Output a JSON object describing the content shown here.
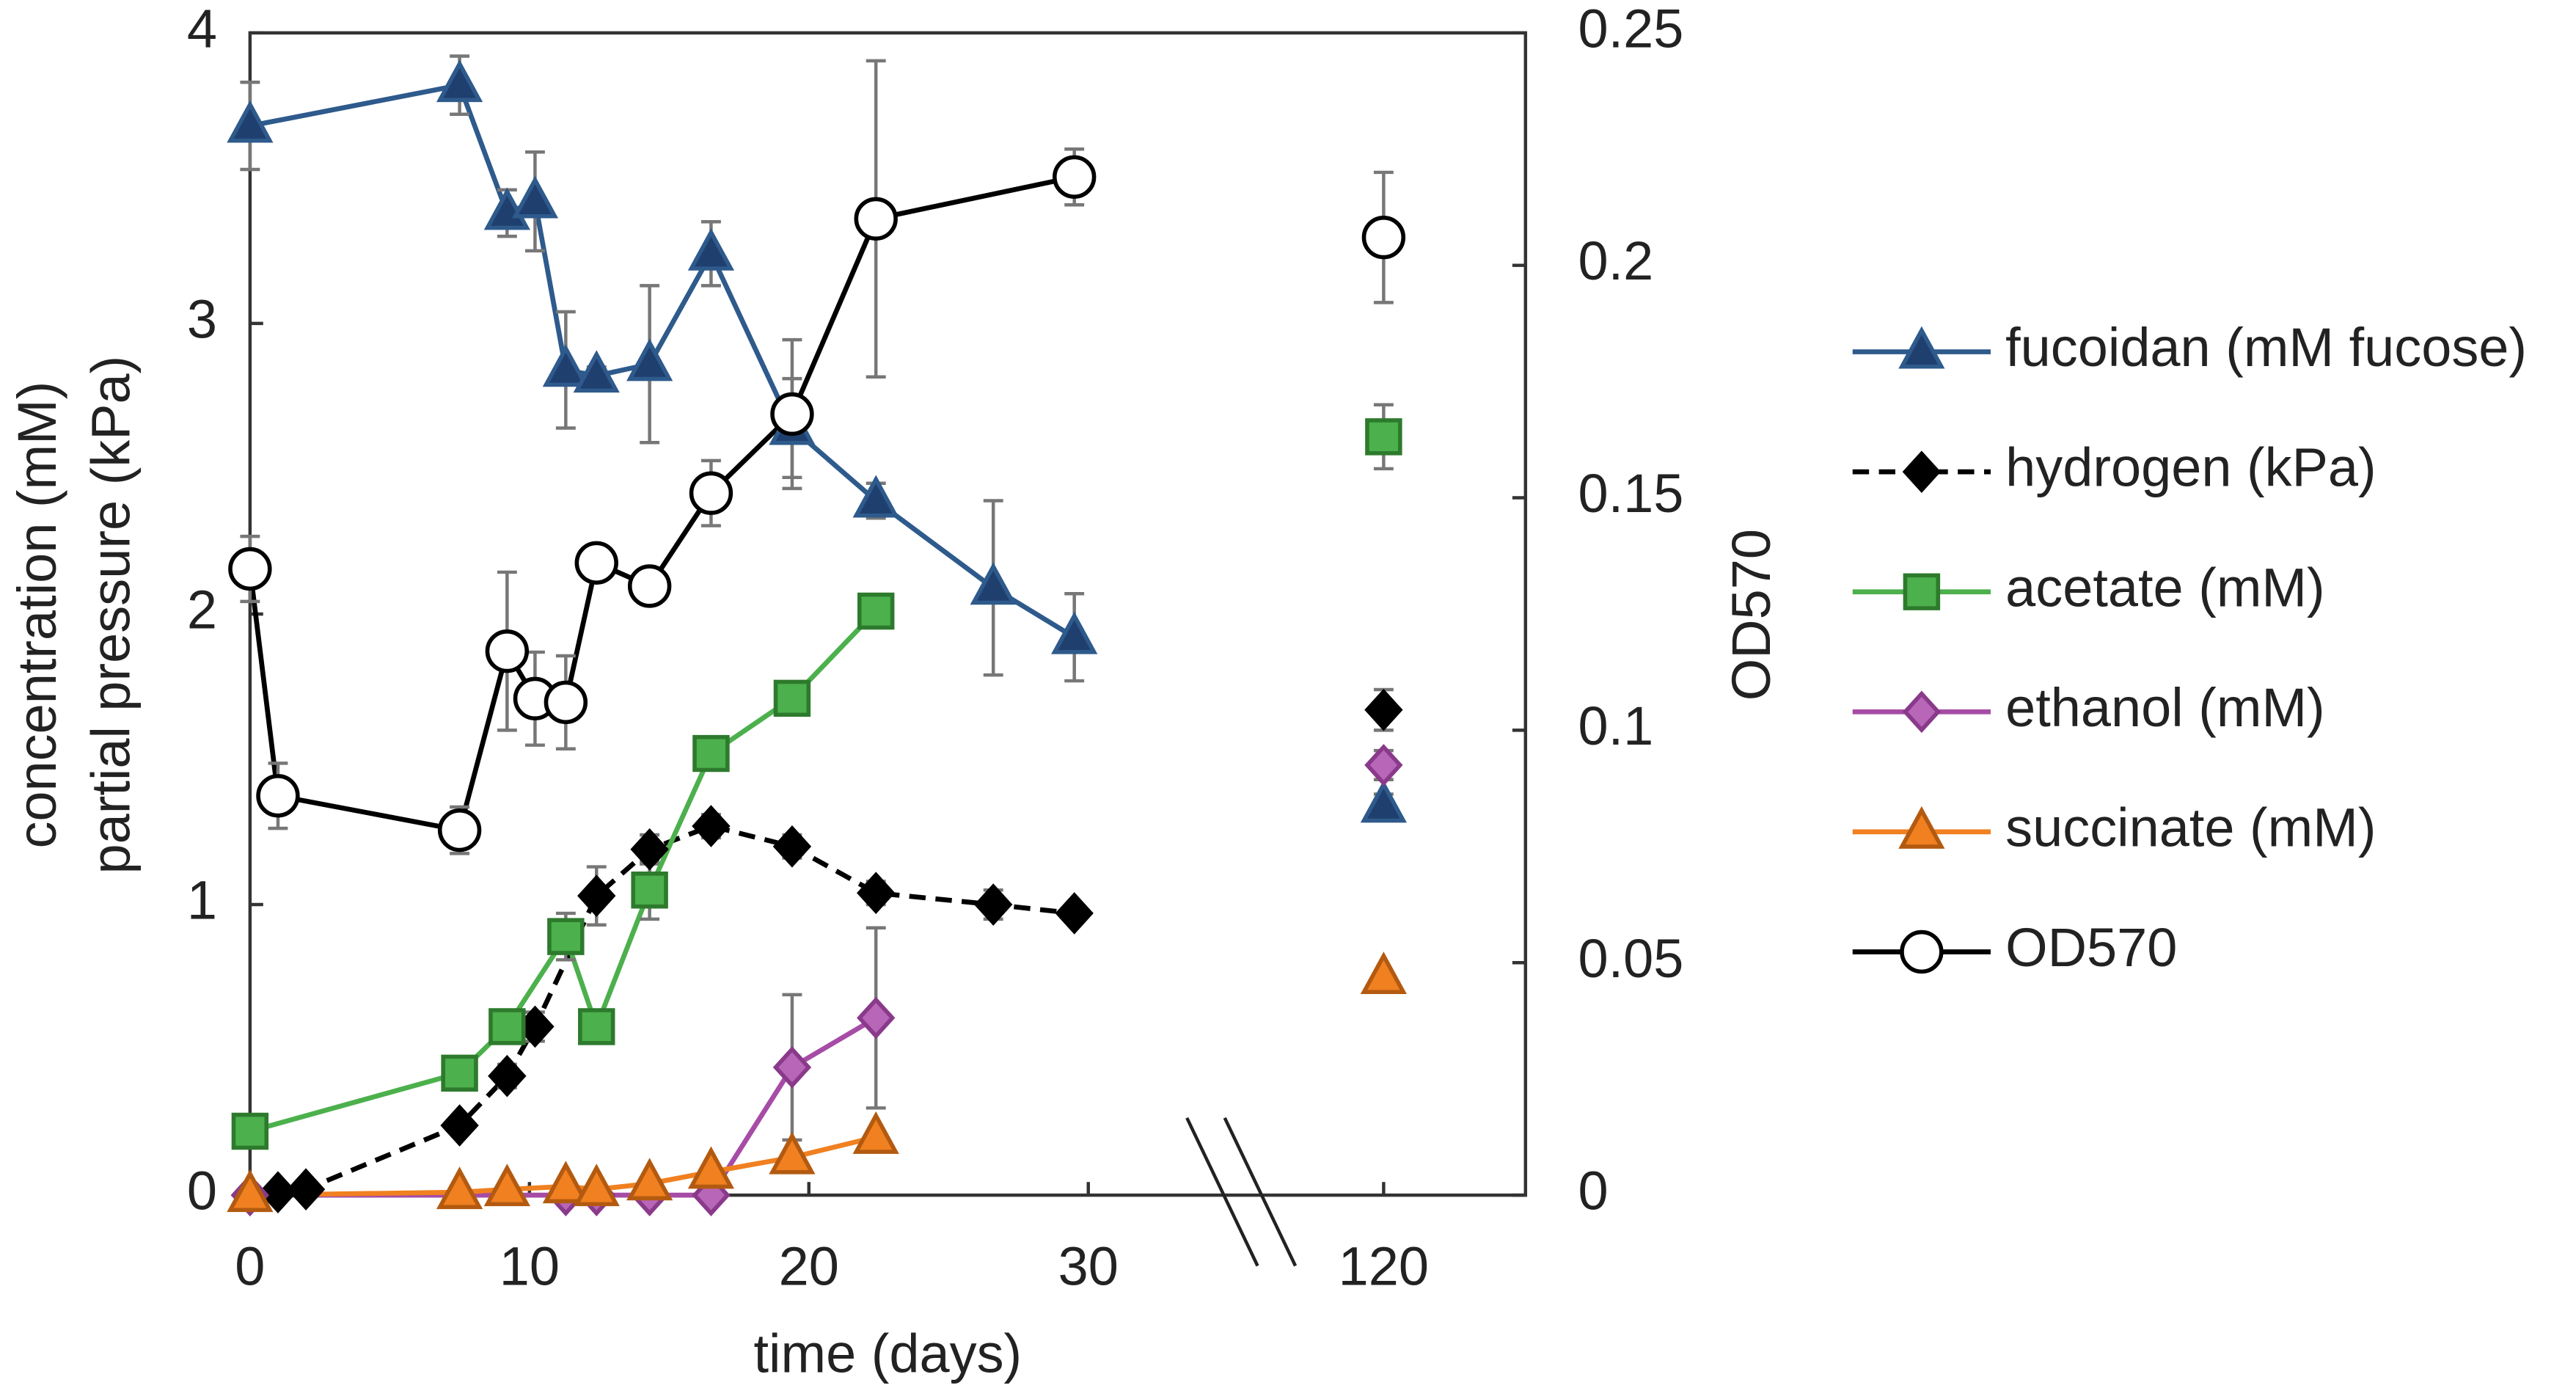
{
  "chart_data": {
    "type": "line",
    "x_label": "time (days)",
    "y_label": [
      "concentration (mM)",
      "partial pressure (kPa)"
    ],
    "y2_label": "OD570",
    "xlim": [
      [
        0,
        36
      ],
      [
        115.5,
        125
      ]
    ],
    "xticks": [
      0,
      10,
      20,
      30,
      120
    ],
    "ylim": [
      0,
      4
    ],
    "yticks": [
      0,
      1,
      2,
      3,
      4
    ],
    "y2lim": [
      0,
      0.25
    ],
    "y2ticks": [
      0,
      0.05,
      0.1,
      0.15,
      0.2,
      0.25
    ],
    "legend": "right",
    "series": [
      {
        "name": "fucoidan (mM fucose)",
        "color": "#2e5a8c",
        "marker": "triangle",
        "marker_fill": "#1f3f6e",
        "dash": false,
        "axis": "y",
        "x": [
          0,
          7.5,
          9.2,
          10.2,
          11.3,
          12.4,
          14.3,
          16.5,
          19.4,
          22.4,
          26.6,
          29.5,
          120
        ],
        "values": [
          3.68,
          3.82,
          3.38,
          3.42,
          2.84,
          2.82,
          2.86,
          3.24,
          2.64,
          2.39,
          2.09,
          1.92,
          1.34
        ],
        "errors": [
          0.15,
          0.1,
          0.08,
          0.17,
          0.2,
          0.03,
          0.27,
          0.11,
          0.17,
          0.06,
          0.3,
          0.15,
          0.04
        ]
      },
      {
        "name": "hydrogen (kPa)",
        "color": "#000000",
        "marker": "diamond",
        "marker_fill": "#000000",
        "dash": true,
        "axis": "y",
        "x": [
          0,
          1,
          2,
          7.5,
          9.2,
          10.2,
          12.4,
          14.3,
          16.5,
          19.4,
          22.4,
          26.6,
          29.5,
          120
        ],
        "values": [
          0,
          0.01,
          0.02,
          0.24,
          0.41,
          0.58,
          1.03,
          1.19,
          1.27,
          1.2,
          1.04,
          1.0,
          0.97,
          1.67
        ],
        "errors": [
          0.02,
          0.02,
          0.02,
          0.03,
          0.04,
          0.05,
          0.1,
          0.05,
          0.04,
          0.04,
          0.04,
          0.05,
          0.03,
          0.07
        ]
      },
      {
        "name": "acetate (mM)",
        "color": "#4cb04c",
        "marker": "square",
        "marker_fill": "#4cb04c",
        "edge": "#2d7a2d",
        "dash": false,
        "axis": "y",
        "x": [
          0,
          7.5,
          9.2,
          11.3,
          12.4,
          14.3,
          16.5,
          19.4,
          22.4,
          120
        ],
        "values": [
          0.22,
          0.42,
          0.58,
          0.89,
          0.58,
          1.05,
          1.52,
          1.71,
          2.01,
          2.61
        ],
        "errors": [
          0.03,
          0.03,
          0.03,
          0.08,
          0.03,
          0.1,
          0.03,
          0.03,
          0.04,
          0.11
        ]
      },
      {
        "name": "ethanol (mM)",
        "color": "#a64ca6",
        "marker": "diamond",
        "marker_fill": "#b866b8",
        "edge": "#8a3a8a",
        "dash": false,
        "axis": "y",
        "x": [
          0,
          11.3,
          12.4,
          14.3,
          16.5,
          19.4,
          22.4,
          120
        ],
        "values": [
          0,
          0,
          0,
          0,
          0,
          0.44,
          0.61,
          1.48
        ],
        "errors": [
          0,
          0,
          0,
          0,
          0,
          0.25,
          0.31,
          0.05
        ]
      },
      {
        "name": "succinate (mM)",
        "color": "#f08020",
        "marker": "triangle",
        "marker_fill": "#f08020",
        "edge": "#b35a10",
        "dash": false,
        "axis": "y",
        "x": [
          0,
          7.5,
          9.2,
          11.3,
          12.4,
          14.3,
          16.5,
          19.4,
          22.4,
          120
        ],
        "values": [
          0,
          0.01,
          0.02,
          0.03,
          0.02,
          0.04,
          0.08,
          0.13,
          0.2,
          0.75
        ],
        "errors": [
          0.02,
          0.02,
          0.02,
          0.02,
          0.02,
          0.02,
          0.02,
          0.02,
          0.02,
          0.02
        ]
      },
      {
        "name": "OD570",
        "color": "#000000",
        "marker": "circle",
        "marker_fill": "#ffffff",
        "dash": false,
        "axis": "y2",
        "x": [
          0,
          1,
          7.5,
          9.2,
          10.2,
          11.3,
          12.4,
          14.3,
          16.5,
          19.4,
          22.4,
          29.5,
          120
        ],
        "values": [
          0.1347,
          0.0859,
          0.0785,
          0.117,
          0.1068,
          0.106,
          0.136,
          0.131,
          0.151,
          0.168,
          0.21,
          0.219,
          0.206
        ],
        "errors": [
          0.007,
          0.007,
          0.005,
          0.017,
          0.01,
          0.01,
          0.003,
          0.003,
          0.007,
          0.016,
          0.034,
          0.006,
          0.014
        ]
      }
    ]
  }
}
